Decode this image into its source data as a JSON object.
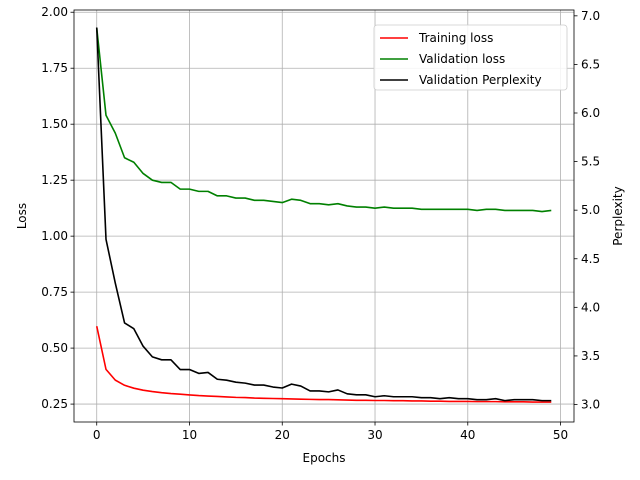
{
  "chart_data": {
    "type": "line",
    "xlabel": "Epochs",
    "ylabel": "Loss",
    "y2label": "Perplexity",
    "xlim": [
      -2.45,
      51.45
    ],
    "ylim": [
      0.17,
      2.01
    ],
    "y2lim": [
      2.82,
      7.06
    ],
    "grid": true,
    "legend_position": "top-right",
    "x_ticks": [
      0,
      10,
      20,
      30,
      40,
      50
    ],
    "y_ticks": [
      0.25,
      0.5,
      0.75,
      1.0,
      1.25,
      1.5,
      1.75,
      2.0
    ],
    "y2_ticks": [
      3.0,
      3.5,
      4.0,
      4.5,
      5.0,
      5.5,
      6.0,
      6.5,
      7.0
    ],
    "x_tick_labels": [
      "0",
      "10",
      "20",
      "30",
      "40",
      "50"
    ],
    "y_tick_labels": [
      "0.25",
      "0.50",
      "0.75",
      "1.00",
      "1.25",
      "1.50",
      "1.75",
      "2.00"
    ],
    "y2_tick_labels": [
      "3.0",
      "3.5",
      "4.0",
      "4.5",
      "5.0",
      "5.5",
      "6.0",
      "6.5",
      "7.0"
    ],
    "series": [
      {
        "name": "Training loss",
        "axis": "left",
        "color": "#ff0000",
        "x": [
          0,
          1,
          2,
          3,
          4,
          5,
          6,
          7,
          8,
          9,
          10,
          11,
          12,
          13,
          14,
          15,
          16,
          17,
          18,
          19,
          20,
          21,
          22,
          23,
          24,
          25,
          26,
          27,
          28,
          29,
          30,
          31,
          32,
          33,
          34,
          35,
          36,
          37,
          38,
          39,
          40,
          41,
          42,
          43,
          44,
          45,
          46,
          47,
          48,
          49
        ],
        "y": [
          0.598,
          0.405,
          0.357,
          0.334,
          0.321,
          0.312,
          0.306,
          0.301,
          0.297,
          0.294,
          0.291,
          0.288,
          0.286,
          0.284,
          0.282,
          0.28,
          0.279,
          0.277,
          0.276,
          0.275,
          0.274,
          0.273,
          0.272,
          0.271,
          0.27,
          0.27,
          0.269,
          0.268,
          0.267,
          0.267,
          0.266,
          0.266,
          0.265,
          0.265,
          0.264,
          0.264,
          0.263,
          0.263,
          0.262,
          0.262,
          0.262,
          0.261,
          0.261,
          0.261,
          0.26,
          0.26,
          0.26,
          0.259,
          0.259,
          0.259
        ]
      },
      {
        "name": "Validation loss",
        "axis": "left",
        "color": "#008000",
        "x": [
          0,
          1,
          2,
          3,
          4,
          5,
          6,
          7,
          8,
          9,
          10,
          11,
          12,
          13,
          14,
          15,
          16,
          17,
          18,
          19,
          20,
          21,
          22,
          23,
          24,
          25,
          26,
          27,
          28,
          29,
          30,
          31,
          32,
          33,
          34,
          35,
          36,
          37,
          38,
          39,
          40,
          41,
          42,
          43,
          44,
          45,
          46,
          47,
          48,
          49
        ],
        "y": [
          1.93,
          1.54,
          1.46,
          1.35,
          1.33,
          1.28,
          1.25,
          1.24,
          1.24,
          1.21,
          1.21,
          1.2,
          1.2,
          1.18,
          1.18,
          1.17,
          1.17,
          1.16,
          1.16,
          1.155,
          1.15,
          1.165,
          1.16,
          1.145,
          1.145,
          1.14,
          1.145,
          1.135,
          1.13,
          1.13,
          1.125,
          1.13,
          1.125,
          1.125,
          1.125,
          1.12,
          1.12,
          1.12,
          1.12,
          1.12,
          1.12,
          1.115,
          1.12,
          1.12,
          1.115,
          1.115,
          1.115,
          1.115,
          1.11,
          1.115
        ]
      },
      {
        "name": "Validation Perplexity",
        "axis": "right",
        "color": "#000000",
        "x": [
          0,
          1,
          2,
          3,
          4,
          5,
          6,
          7,
          8,
          9,
          10,
          11,
          12,
          13,
          14,
          15,
          16,
          17,
          18,
          19,
          20,
          21,
          22,
          23,
          24,
          25,
          26,
          27,
          28,
          29,
          30,
          31,
          32,
          33,
          34,
          35,
          36,
          37,
          38,
          39,
          40,
          41,
          42,
          43,
          44,
          45,
          46,
          47,
          48,
          49
        ],
        "y": [
          6.88,
          4.7,
          4.25,
          3.84,
          3.78,
          3.6,
          3.49,
          3.46,
          3.46,
          3.36,
          3.36,
          3.32,
          3.33,
          3.26,
          3.25,
          3.23,
          3.22,
          3.2,
          3.2,
          3.18,
          3.17,
          3.21,
          3.19,
          3.14,
          3.14,
          3.13,
          3.15,
          3.11,
          3.1,
          3.1,
          3.08,
          3.09,
          3.08,
          3.08,
          3.08,
          3.07,
          3.07,
          3.06,
          3.07,
          3.06,
          3.06,
          3.05,
          3.05,
          3.06,
          3.04,
          3.05,
          3.05,
          3.05,
          3.04,
          3.04
        ]
      }
    ]
  }
}
